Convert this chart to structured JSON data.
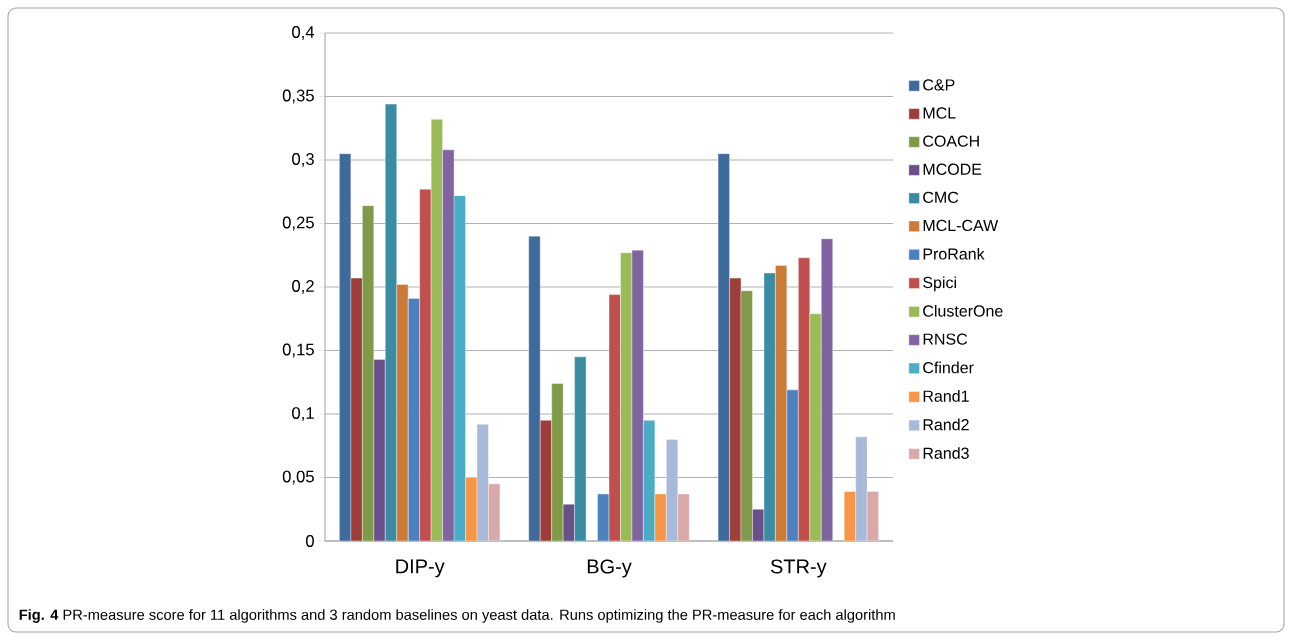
{
  "chart_data": {
    "type": "bar",
    "categories": [
      "DIP-y",
      "BG-y",
      "STR-y"
    ],
    "series": [
      {
        "name": "C&P",
        "color": "#3f6a9c",
        "values": [
          0.305,
          0.24,
          0.305
        ]
      },
      {
        "name": "MCL",
        "color": "#9e3e3b",
        "values": [
          0.207,
          0.095,
          0.207
        ]
      },
      {
        "name": "COACH",
        "color": "#7f9a48",
        "values": [
          0.264,
          0.124,
          0.197
        ]
      },
      {
        "name": "MCODE",
        "color": "#6a5088",
        "values": [
          0.143,
          0.029,
          0.025
        ]
      },
      {
        "name": "CMC",
        "color": "#3b8ba2",
        "values": [
          0.344,
          0.145,
          0.211
        ]
      },
      {
        "name": "MCL-CAW",
        "color": "#cc7a37",
        "values": [
          0.202,
          null,
          0.217
        ]
      },
      {
        "name": "ProRank",
        "color": "#4c80bf",
        "values": [
          0.191,
          0.037,
          0.119
        ]
      },
      {
        "name": "Spici",
        "color": "#c0504d",
        "values": [
          0.277,
          0.194,
          0.223
        ]
      },
      {
        "name": "ClusterOne",
        "color": "#9bbb59",
        "values": [
          0.332,
          0.227,
          0.179
        ]
      },
      {
        "name": "RNSC",
        "color": "#8064a2",
        "values": [
          0.308,
          0.229,
          0.238
        ]
      },
      {
        "name": "Cfinder",
        "color": "#4bacc6",
        "values": [
          0.272,
          0.095,
          null
        ]
      },
      {
        "name": "Rand1",
        "color": "#f79646",
        "values": [
          0.05,
          0.037,
          0.039
        ]
      },
      {
        "name": "Rand2",
        "color": "#a9b9d9",
        "values": [
          0.092,
          0.08,
          0.082
        ]
      },
      {
        "name": "Rand3",
        "color": "#d9a8a8",
        "values": [
          0.045,
          0.037,
          0.039
        ]
      }
    ],
    "ylim": [
      0,
      0.4
    ],
    "yticks": [
      0,
      {
        "value": 0.05,
        "label": "0,05"
      },
      {
        "value": 0.1,
        "label": "0,1"
      },
      {
        "value": 0.15,
        "label": "0,15"
      },
      {
        "value": 0.2,
        "label": "0,2"
      },
      {
        "value": 0.25,
        "label": "0,25"
      },
      {
        "value": 0.3,
        "label": "0,3"
      },
      {
        "value": 0.35,
        "label": "0,35"
      },
      {
        "value": 0.4,
        "label": "0,4"
      }
    ],
    "grid": "y",
    "legend": "right",
    "annotations": [
      "**Fig. 4** PR-measure score for 11 algorithms and 3 random baselines on yeast data. Runs optimizing the PR-measure for each algorithm"
    ]
  }
}
